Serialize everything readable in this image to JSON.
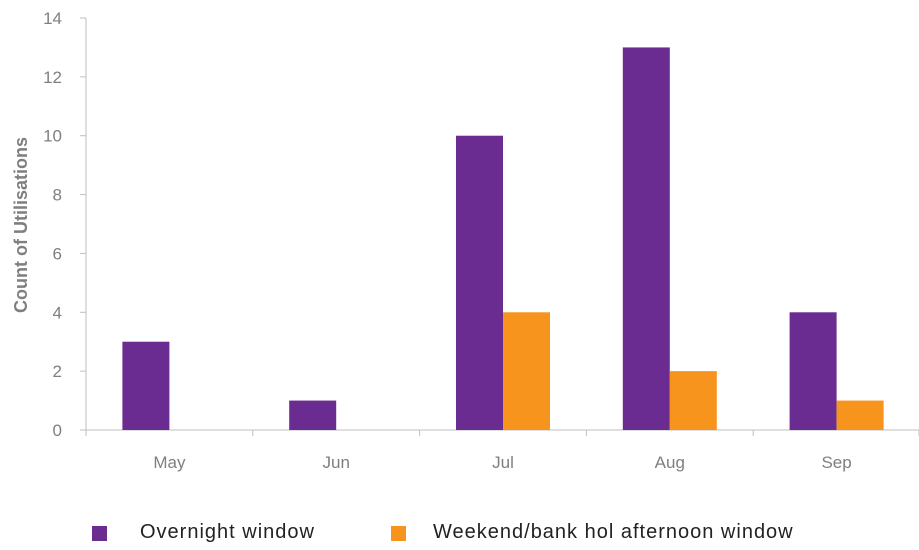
{
  "chart_data": {
    "type": "bar",
    "title": "",
    "xlabel": "",
    "ylabel": "Count of Utilisations",
    "categories": [
      "May",
      "Jun",
      "Jul",
      "Aug",
      "Sep"
    ],
    "ylim": [
      0,
      14
    ],
    "yticks": [
      0,
      2,
      4,
      6,
      8,
      10,
      12,
      14
    ],
    "grid": false,
    "legend_position": "bottom",
    "series": [
      {
        "name": "Overnight window",
        "color": "#6a2c91",
        "values": [
          3,
          1,
          10,
          13,
          4
        ]
      },
      {
        "name": "Weekend/bank hol afternoon window",
        "color": "#f7941d",
        "values": [
          0,
          0,
          4,
          2,
          1
        ]
      }
    ]
  }
}
